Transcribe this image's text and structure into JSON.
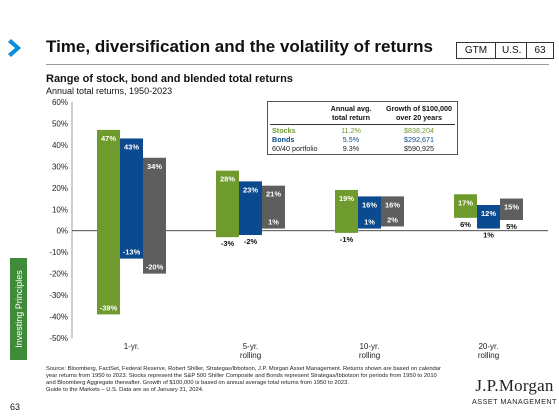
{
  "header": {
    "title": "Time, diversification and the volatility of returns",
    "badges": [
      "GTM",
      "U.S.",
      "63"
    ]
  },
  "sidebar": {
    "tab_label": "Investing Principles",
    "page_number": "63"
  },
  "chart_data": {
    "type": "bar",
    "title": "Range of stock, bond and blended total returns",
    "subtitle": "Annual total returns, 1950-2023",
    "categories": [
      [
        "1-yr."
      ],
      [
        "5-yr.",
        "rolling"
      ],
      [
        "10-yr.",
        "rolling"
      ],
      [
        "20-yr.",
        "rolling"
      ]
    ],
    "ylim": [
      -50,
      60
    ],
    "yticks": [
      "-50%",
      "-40%",
      "-30%",
      "-20%",
      "-10%",
      "0%",
      "10%",
      "20%",
      "30%",
      "40%",
      "50%",
      "60%"
    ],
    "series": [
      {
        "name": "Stocks",
        "color": "#6f9a2e",
        "max": [
          47,
          28,
          19,
          17
        ],
        "min": [
          -39,
          -3,
          -1,
          6
        ],
        "max_labels": [
          "47%",
          "28%",
          "19%",
          "17%"
        ],
        "min_labels": [
          "-39%",
          "-3%",
          "-1%",
          "6%"
        ]
      },
      {
        "name": "Bonds",
        "color": "#0c4a8f",
        "max": [
          43,
          23,
          16,
          12
        ],
        "min": [
          -13,
          -2,
          1,
          1
        ],
        "max_labels": [
          "43%",
          "23%",
          "16%",
          "12%"
        ],
        "min_labels": [
          "-13%",
          "-2%",
          "1%",
          "1%"
        ]
      },
      {
        "name": "60/40 portfolio",
        "color": "#5e5e5e",
        "max": [
          34,
          21,
          16,
          15
        ],
        "min": [
          -20,
          1,
          2,
          5
        ],
        "max_labels": [
          "34%",
          "21%",
          "16%",
          "15%"
        ],
        "min_labels": [
          "-20%",
          "1%",
          "2%",
          "5%"
        ]
      }
    ],
    "grid": false,
    "table": {
      "col1_header": "Annual avg. total return",
      "col2_header": "Growth of $100,000 over 20 years",
      "rows": [
        {
          "name": "Stocks",
          "avg": "11.2%",
          "growth": "$838,204",
          "color": "#6f9a2e"
        },
        {
          "name": "Bonds",
          "avg": "5.5%",
          "growth": "$292,671",
          "color": "#0c4a8f"
        },
        {
          "name": "60/40 portfolio",
          "avg": "9.3%",
          "growth": "$590,925",
          "color": "#222222"
        }
      ]
    }
  },
  "footer": {
    "source": "Source: Bloomberg, FactSet, Federal Reserve, Robert Shiller, Strategas/Ibbotson, J.P. Morgan Asset Management. Returns shown are based on calendar year returns from 1950 to 2023. Stocks represent the S&P 500 Shiller Composite and Bonds represent Strategas/Ibbotson for periods from 1950 to 2010 and Bloomberg Aggregate thereafter. Growth of $100,000 is based on annual average total returns from 1950 to 2023.",
    "date_note": "Guide to the Markets – U.S. Data are as of January 31, 2024.",
    "logo_name": "J.P.Morgan",
    "logo_sub": "ASSET MANAGEMENT"
  }
}
